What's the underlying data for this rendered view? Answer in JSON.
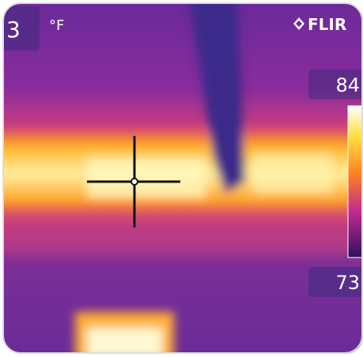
{
  "reading": "3",
  "unit": "°F",
  "brand": "FLIR",
  "scale": {
    "max": "84",
    "min": "73"
  }
}
